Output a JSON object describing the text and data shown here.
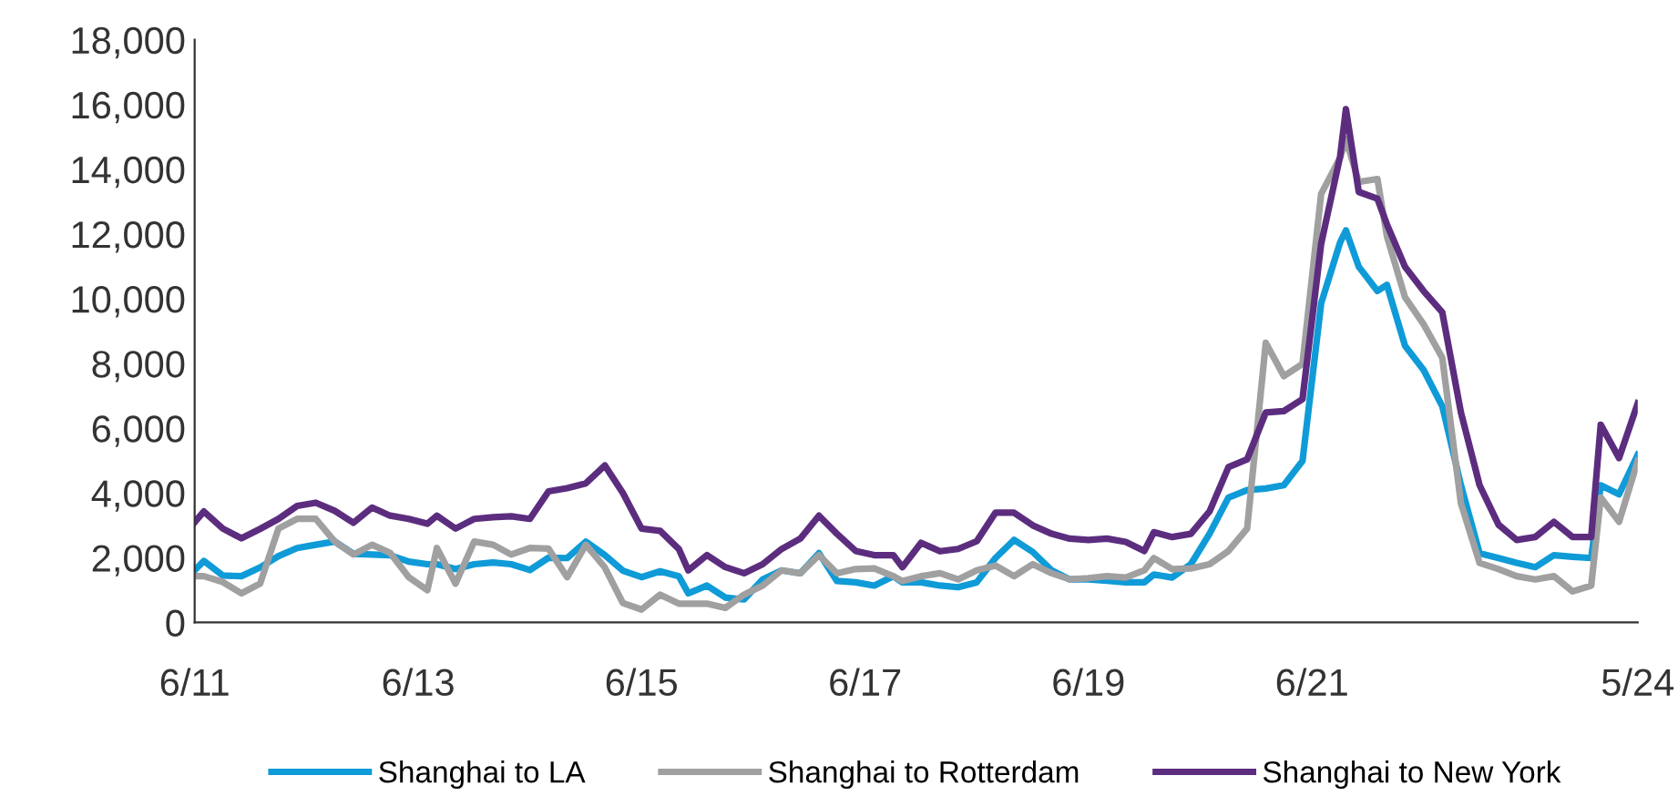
{
  "chart_data": {
    "type": "line",
    "x": [
      "2011-06",
      "2011-07",
      "2011-09",
      "2011-11",
      "2012-01",
      "2012-03",
      "2012-05",
      "2012-07",
      "2012-09",
      "2012-11",
      "2013-01",
      "2013-03",
      "2013-05",
      "2013-07",
      "2013-08",
      "2013-10",
      "2013-12",
      "2014-02",
      "2014-04",
      "2014-06",
      "2014-08",
      "2014-10",
      "2014-12",
      "2015-02",
      "2015-04",
      "2015-06",
      "2015-08",
      "2015-10",
      "2015-11",
      "2016-01",
      "2016-03",
      "2016-05",
      "2016-07",
      "2016-09",
      "2016-11",
      "2017-01",
      "2017-03",
      "2017-05",
      "2017-07",
      "2017-09",
      "2017-10",
      "2017-12",
      "2018-02",
      "2018-04",
      "2018-06",
      "2018-08",
      "2018-10",
      "2018-12",
      "2019-02",
      "2019-04",
      "2019-06",
      "2019-08",
      "2019-10",
      "2019-12",
      "2020-01",
      "2020-03",
      "2020-05",
      "2020-07",
      "2020-09",
      "2020-11",
      "2021-01",
      "2021-03",
      "2021-05",
      "2021-07",
      "2021-09-01",
      "2021-09-20",
      "2021-11",
      "2022-01",
      "2022-02",
      "2022-04",
      "2022-06",
      "2022-08",
      "2022-10",
      "2022-12",
      "2023-02",
      "2023-04",
      "2023-06",
      "2023-08",
      "2023-10",
      "2023-12",
      "2024-01",
      "2024-03",
      "2024-05"
    ],
    "series": [
      {
        "name": "Shanghai to LA",
        "color": "#0f9bd7",
        "values": [
          1610,
          1900,
          1450,
          1430,
          1700,
          2050,
          2300,
          2400,
          2500,
          2120,
          2100,
          2080,
          1880,
          1800,
          1800,
          1650,
          1800,
          1850,
          1800,
          1620,
          2000,
          1990,
          2500,
          2080,
          1600,
          1400,
          1580,
          1430,
          900,
          1140,
          770,
          710,
          1330,
          1610,
          1520,
          2140,
          1280,
          1240,
          1140,
          1430,
          1240,
          1240,
          1140,
          1090,
          1240,
          1990,
          2550,
          2180,
          1610,
          1330,
          1330,
          1290,
          1240,
          1240,
          1480,
          1390,
          1800,
          2740,
          3860,
          4090,
          4140,
          4240,
          4990,
          9860,
          11740,
          12110,
          10990,
          10240,
          10430,
          8550,
          7800,
          6680,
          4240,
          2140,
          1990,
          1840,
          1710,
          2080,
          2030,
          1990,
          4240,
          3960,
          5180
        ]
      },
      {
        "name": "Shanghai to Rotterdam",
        "color": "#a0a0a0",
        "values": [
          1430,
          1430,
          1250,
          900,
          1200,
          2900,
          3200,
          3200,
          2500,
          2100,
          2400,
          2150,
          1400,
          1000,
          2300,
          1200,
          2500,
          2400,
          2100,
          2300,
          2280,
          1400,
          2400,
          1700,
          600,
          400,
          860,
          580,
          580,
          580,
          450,
          860,
          1140,
          1610,
          1520,
          2080,
          1520,
          1650,
          1670,
          1430,
          1280,
          1430,
          1520,
          1330,
          1610,
          1760,
          1430,
          1800,
          1520,
          1330,
          1370,
          1430,
          1390,
          1610,
          1990,
          1650,
          1670,
          1800,
          2210,
          2900,
          8640,
          7610,
          7990,
          13240,
          14360,
          14930,
          13610,
          13700,
          11930,
          10050,
          9210,
          8180,
          3680,
          1840,
          1650,
          1430,
          1330,
          1430,
          960,
          1140,
          3860,
          3110,
          4990
        ]
      },
      {
        "name": "Shanghai to New York",
        "color": "#5c2d7f",
        "values": [
          3100,
          3430,
          2900,
          2600,
          2890,
          3200,
          3600,
          3700,
          3450,
          3080,
          3550,
          3300,
          3200,
          3050,
          3300,
          2900,
          3200,
          3250,
          3280,
          3200,
          4050,
          4150,
          4300,
          4850,
          4000,
          2900,
          2830,
          2270,
          1610,
          2080,
          1710,
          1520,
          1800,
          2270,
          2590,
          3300,
          2740,
          2210,
          2080,
          2080,
          1710,
          2460,
          2200,
          2270,
          2510,
          3390,
          3390,
          3000,
          2740,
          2590,
          2550,
          2590,
          2490,
          2210,
          2790,
          2640,
          2740,
          3430,
          4800,
          5040,
          6490,
          6530,
          6900,
          11700,
          14400,
          15860,
          13300,
          13090,
          12300,
          10990,
          10240,
          9580,
          6490,
          4240,
          3020,
          2550,
          2640,
          3110,
          2640,
          2640,
          6110,
          5080,
          6770
        ]
      }
    ],
    "xlim": [
      "2011-06",
      "2024-05"
    ],
    "xticks": [
      {
        "value": "2011-06",
        "label": "6/11"
      },
      {
        "value": "2013-06",
        "label": "6/13"
      },
      {
        "value": "2015-06",
        "label": "6/15"
      },
      {
        "value": "2017-06",
        "label": "6/17"
      },
      {
        "value": "2019-06",
        "label": "6/19"
      },
      {
        "value": "2021-06",
        "label": "6/21"
      },
      {
        "value": "2024-05",
        "label": "5/24"
      }
    ],
    "ylim": [
      0,
      18000
    ],
    "yticks": [
      {
        "value": 0,
        "label": "0"
      },
      {
        "value": 2000,
        "label": "2,000"
      },
      {
        "value": 4000,
        "label": "4,000"
      },
      {
        "value": 6000,
        "label": "6,000"
      },
      {
        "value": 8000,
        "label": "8,000"
      },
      {
        "value": 10000,
        "label": "10,000"
      },
      {
        "value": 12000,
        "label": "12,000"
      },
      {
        "value": 14000,
        "label": "14,000"
      },
      {
        "value": 16000,
        "label": "16,000"
      },
      {
        "value": 18000,
        "label": "18,000"
      }
    ],
    "grid": false,
    "legend": "bottom",
    "marker": "none",
    "line_style": "solid"
  }
}
